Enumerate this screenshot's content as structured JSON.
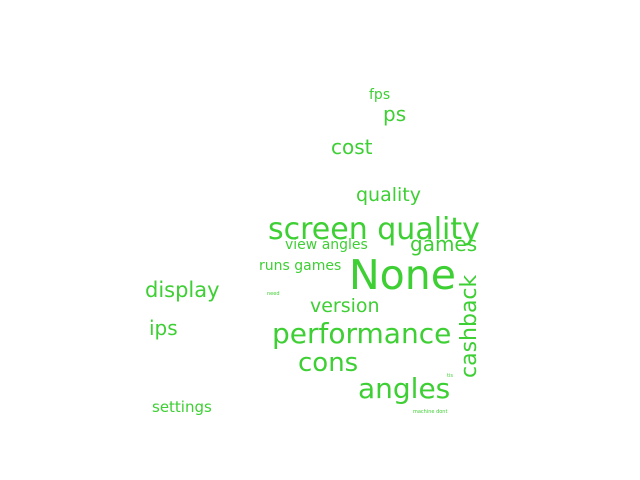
{
  "colors": {
    "word": "#3ecf34",
    "background": "#ffffff"
  },
  "words": [
    {
      "text": "None"
    },
    {
      "text": "screen quality"
    },
    {
      "text": "performance"
    },
    {
      "text": "angles"
    },
    {
      "text": "cons"
    },
    {
      "text": "cashback"
    },
    {
      "text": "games"
    },
    {
      "text": "display"
    },
    {
      "text": "cost"
    },
    {
      "text": "quality"
    },
    {
      "text": "version"
    },
    {
      "text": "ips"
    },
    {
      "text": "ps"
    },
    {
      "text": "settings"
    },
    {
      "text": "runs games"
    },
    {
      "text": "view angles"
    },
    {
      "text": "fps"
    },
    {
      "text": "need"
    },
    {
      "text": "machine dont"
    },
    {
      "text": "tis"
    }
  ]
}
